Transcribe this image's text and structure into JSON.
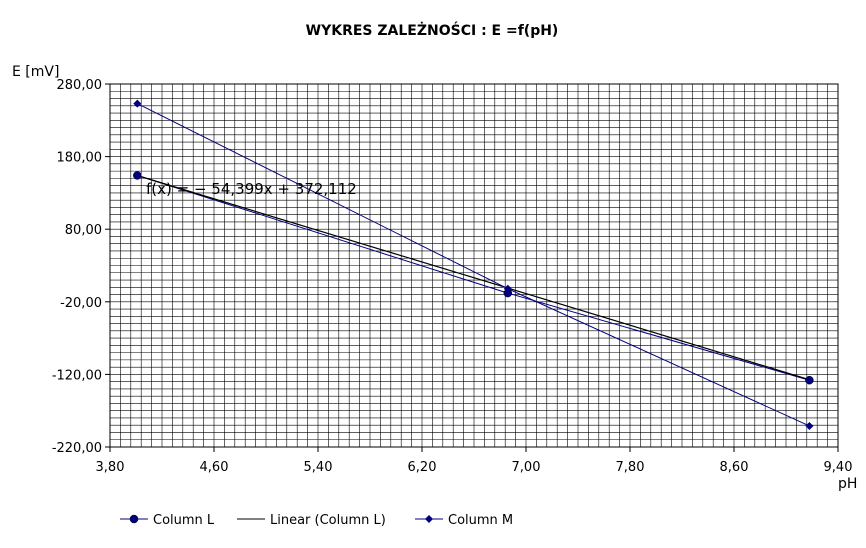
{
  "chart_data": {
    "type": "scatter",
    "title": "WYKRES ZALEŻNOŚCI :  E =f(pH)",
    "xlabel": "pH",
    "ylabel": "E [mV]",
    "xlim": [
      3.8,
      9.4
    ],
    "ylim": [
      -220,
      280
    ],
    "x_ticks": [
      "3,80",
      "4,60",
      "5,40",
      "6,20",
      "7,00",
      "7,80",
      "8,60",
      "9,40"
    ],
    "y_ticks": [
      "280,00",
      "180,00",
      "80,00",
      "-20,00",
      "-120,00",
      "-220,00"
    ],
    "grid": true,
    "legend_position": "bottom",
    "trendline_label": "f(x) = − 54,399x + 372,112",
    "series": [
      {
        "name": "Column L",
        "marker": "circle",
        "color": "#000080",
        "x": [
          4.01,
          6.86,
          9.18
        ],
        "y": [
          154,
          -8,
          -128
        ]
      },
      {
        "name": "Linear (Column L)",
        "marker": "none",
        "color": "#000000",
        "trendline": {
          "slope": -54.399,
          "intercept": 372.112
        },
        "x_range": [
          4.01,
          9.18
        ]
      },
      {
        "name": "Column M",
        "marker": "diamond",
        "color": "#000080",
        "x": [
          4.01,
          6.86,
          9.18
        ],
        "y": [
          253,
          -2,
          -191
        ]
      }
    ]
  }
}
